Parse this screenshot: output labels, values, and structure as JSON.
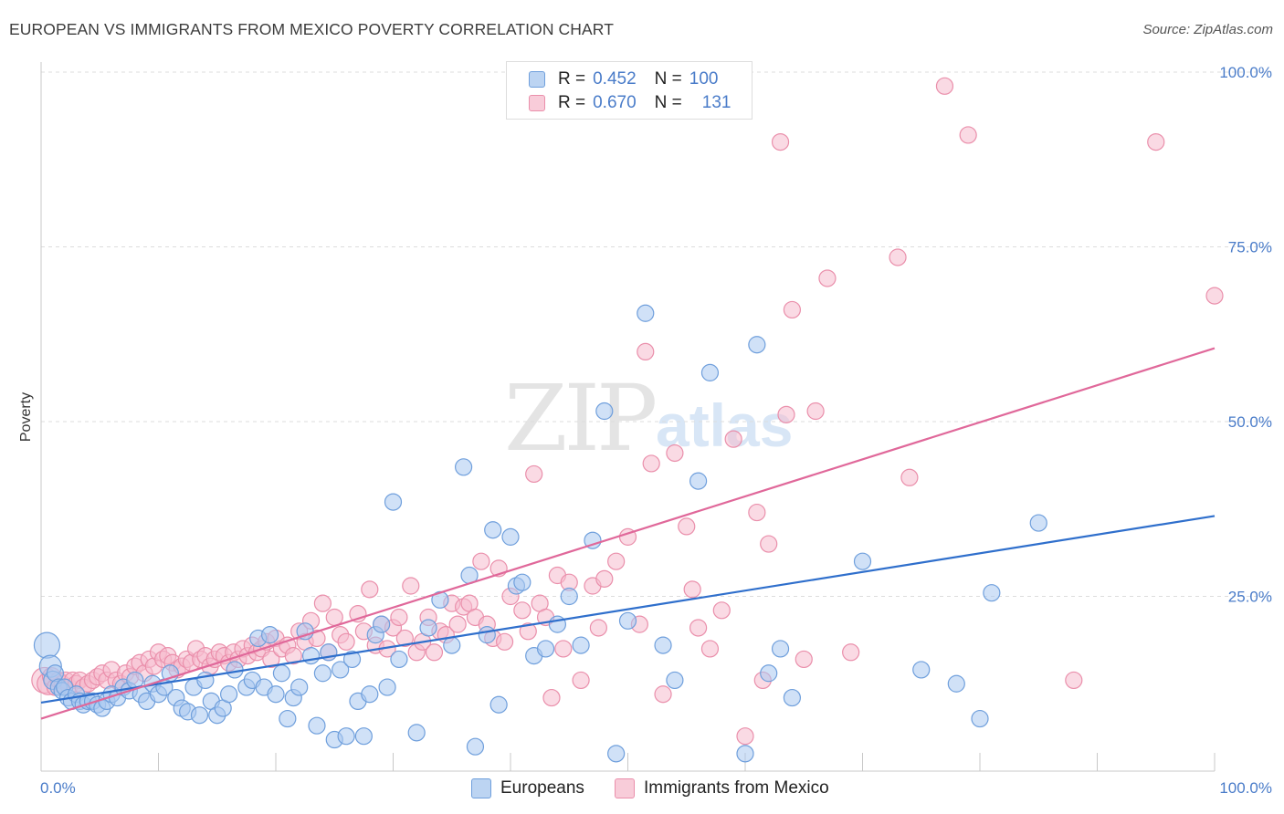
{
  "title": "EUROPEAN VS IMMIGRANTS FROM MEXICO POVERTY CORRELATION CHART",
  "source": "Source: ZipAtlas.com",
  "watermark": {
    "zip": "ZIP",
    "atlas": "atlas"
  },
  "legend": {
    "rows": [
      {
        "r_label": "R =",
        "r_value": "0.452",
        "n_label": "N =",
        "n_value": "100"
      },
      {
        "r_label": "R =",
        "r_value": "0.670",
        "n_label": "N =",
        "n_value": "131"
      }
    ]
  },
  "bottom_legend": [
    "Europeans",
    "Immigrants from Mexico"
  ],
  "colors": {
    "europeans_fill": "#a9c9f0",
    "europeans_stroke": "#6f9fdc",
    "europeans_line": "#2f6fcc",
    "mexico_fill": "#f6bccd",
    "mexico_stroke": "#ea8fab",
    "mexico_line": "#e0689a",
    "grid": "#dddddd",
    "tick_text": "#4a7cc9"
  },
  "chart_data": {
    "type": "scatter",
    "title": "EUROPEAN VS IMMIGRANTS FROM MEXICO POVERTY CORRELATION CHART",
    "xlabel": "",
    "ylabel": "Poverty",
    "xlim": [
      0,
      100
    ],
    "ylim": [
      0,
      100
    ],
    "x_tick_labels": [
      "0.0%",
      "100.0%"
    ],
    "y_ticks": [
      25,
      50,
      75,
      100
    ],
    "y_tick_labels": [
      "25.0%",
      "50.0%",
      "75.0%",
      "100.0%"
    ],
    "grid": true,
    "legend_position": "top-center",
    "series": [
      {
        "name": "Europeans",
        "R": 0.452,
        "N": 100,
        "trend": {
          "x": [
            0,
            100
          ],
          "y": [
            9.8,
            36.5
          ]
        },
        "points": [
          [
            0.5,
            18
          ],
          [
            0.8,
            15
          ],
          [
            1.0,
            13
          ],
          [
            1.2,
            14
          ],
          [
            1.5,
            12
          ],
          [
            1.8,
            11.5
          ],
          [
            2.0,
            12
          ],
          [
            2.3,
            10.5
          ],
          [
            2.6,
            10
          ],
          [
            3.0,
            11
          ],
          [
            3.3,
            10
          ],
          [
            3.6,
            9.5
          ],
          [
            4.0,
            10
          ],
          [
            4.4,
            10
          ],
          [
            4.8,
            9.5
          ],
          [
            5.2,
            9
          ],
          [
            5.6,
            10
          ],
          [
            6.0,
            11
          ],
          [
            6.5,
            10.5
          ],
          [
            7.0,
            12
          ],
          [
            7.5,
            11.5
          ],
          [
            8.0,
            13
          ],
          [
            8.5,
            11
          ],
          [
            9.0,
            10
          ],
          [
            9.5,
            12.5
          ],
          [
            10.0,
            11
          ],
          [
            10.5,
            12
          ],
          [
            11.0,
            14
          ],
          [
            11.5,
            10.5
          ],
          [
            12.0,
            9
          ],
          [
            12.5,
            8.5
          ],
          [
            13.0,
            12
          ],
          [
            13.5,
            8
          ],
          [
            14.0,
            13
          ],
          [
            14.5,
            10
          ],
          [
            15.0,
            8
          ],
          [
            15.5,
            9
          ],
          [
            16.0,
            11
          ],
          [
            16.5,
            14.5
          ],
          [
            17.5,
            12
          ],
          [
            18.0,
            13
          ],
          [
            18.5,
            19
          ],
          [
            19.0,
            12
          ],
          [
            19.5,
            19.5
          ],
          [
            20.0,
            11
          ],
          [
            20.5,
            14
          ],
          [
            21.0,
            7.5
          ],
          [
            21.5,
            10.5
          ],
          [
            22.0,
            12
          ],
          [
            22.5,
            20
          ],
          [
            23.0,
            16.5
          ],
          [
            23.5,
            6.5
          ],
          [
            24.0,
            14
          ],
          [
            24.5,
            17
          ],
          [
            25.0,
            4.5
          ],
          [
            25.5,
            14.5
          ],
          [
            26.0,
            5
          ],
          [
            26.5,
            16
          ],
          [
            27.0,
            10
          ],
          [
            27.5,
            5
          ],
          [
            28.0,
            11
          ],
          [
            28.5,
            19.5
          ],
          [
            29.0,
            21
          ],
          [
            29.5,
            12
          ],
          [
            30.0,
            38.5
          ],
          [
            30.5,
            16
          ],
          [
            32.0,
            5.5
          ],
          [
            33.0,
            20.5
          ],
          [
            34.0,
            24.5
          ],
          [
            35.0,
            18
          ],
          [
            36.0,
            43.5
          ],
          [
            36.5,
            28
          ],
          [
            37.0,
            3.5
          ],
          [
            38.0,
            19.5
          ],
          [
            38.5,
            34.5
          ],
          [
            39.0,
            9.5
          ],
          [
            40.0,
            33.5
          ],
          [
            40.5,
            26.5
          ],
          [
            41.0,
            27
          ],
          [
            42.0,
            16.5
          ],
          [
            43.0,
            17.5
          ],
          [
            44.0,
            21
          ],
          [
            45.0,
            25
          ],
          [
            46.0,
            18
          ],
          [
            47.0,
            33
          ],
          [
            48.0,
            51.5
          ],
          [
            49.0,
            2.5
          ],
          [
            50.0,
            21.5
          ],
          [
            51.5,
            65.5
          ],
          [
            53.0,
            18
          ],
          [
            54.0,
            13
          ],
          [
            56.0,
            41.5
          ],
          [
            57.0,
            57
          ],
          [
            60.0,
            2.5
          ],
          [
            61.0,
            61
          ],
          [
            62.0,
            14
          ],
          [
            63.0,
            17.5
          ],
          [
            64.0,
            10.5
          ],
          [
            70.0,
            30
          ],
          [
            75.0,
            14.5
          ],
          [
            78.0,
            12.5
          ],
          [
            80.0,
            7.5
          ],
          [
            81.0,
            25.5
          ],
          [
            85.0,
            35.5
          ]
        ]
      },
      {
        "name": "Immigrants from Mexico",
        "R": 0.67,
        "N": 131,
        "trend": {
          "x": [
            0,
            100
          ],
          "y": [
            7.5,
            60.5
          ]
        },
        "points": [
          [
            0.3,
            13
          ],
          [
            0.6,
            12.5
          ],
          [
            0.9,
            13.5
          ],
          [
            1.2,
            12
          ],
          [
            1.5,
            13
          ],
          [
            1.8,
            12.5
          ],
          [
            2.1,
            13
          ],
          [
            2.4,
            12
          ],
          [
            2.7,
            13
          ],
          [
            3.0,
            12.5
          ],
          [
            3.3,
            13
          ],
          [
            3.6,
            12
          ],
          [
            4.0,
            12.5
          ],
          [
            4.4,
            13
          ],
          [
            4.8,
            13.5
          ],
          [
            5.2,
            14
          ],
          [
            5.6,
            13
          ],
          [
            6.0,
            14.5
          ],
          [
            6.4,
            13
          ],
          [
            6.8,
            12.5
          ],
          [
            7.2,
            14
          ],
          [
            7.6,
            13.5
          ],
          [
            8.0,
            15
          ],
          [
            8.4,
            15.5
          ],
          [
            8.8,
            14
          ],
          [
            9.2,
            16
          ],
          [
            9.6,
            15
          ],
          [
            10.0,
            17
          ],
          [
            10.4,
            16
          ],
          [
            10.8,
            16.5
          ],
          [
            11.2,
            15.5
          ],
          [
            11.6,
            14.5
          ],
          [
            12.0,
            15
          ],
          [
            12.4,
            16
          ],
          [
            12.8,
            15.5
          ],
          [
            13.2,
            17.5
          ],
          [
            13.6,
            16
          ],
          [
            14.0,
            16.5
          ],
          [
            14.4,
            15
          ],
          [
            14.8,
            16
          ],
          [
            15.2,
            17
          ],
          [
            15.6,
            16.5
          ],
          [
            16.0,
            15.5
          ],
          [
            16.4,
            17
          ],
          [
            16.8,
            16
          ],
          [
            17.2,
            17.5
          ],
          [
            17.6,
            16.5
          ],
          [
            18.0,
            18
          ],
          [
            18.4,
            17
          ],
          [
            18.8,
            17.5
          ],
          [
            19.2,
            18.5
          ],
          [
            19.6,
            16
          ],
          [
            20.0,
            19
          ],
          [
            20.5,
            17.5
          ],
          [
            21.0,
            18
          ],
          [
            21.5,
            16.5
          ],
          [
            22.0,
            20
          ],
          [
            22.5,
            18.5
          ],
          [
            23.0,
            21.5
          ],
          [
            23.5,
            19
          ],
          [
            24.0,
            24
          ],
          [
            24.5,
            17
          ],
          [
            25.0,
            22
          ],
          [
            25.5,
            19.5
          ],
          [
            26.0,
            18.5
          ],
          [
            27.0,
            22.5
          ],
          [
            27.5,
            20
          ],
          [
            28.0,
            26
          ],
          [
            28.5,
            18
          ],
          [
            29.0,
            21
          ],
          [
            29.5,
            17.5
          ],
          [
            30.0,
            20.5
          ],
          [
            30.5,
            22
          ],
          [
            31.0,
            19
          ],
          [
            31.5,
            26.5
          ],
          [
            32.0,
            17
          ],
          [
            32.5,
            18.5
          ],
          [
            33.0,
            22
          ],
          [
            33.5,
            17
          ],
          [
            34.0,
            20
          ],
          [
            34.5,
            19.5
          ],
          [
            35.0,
            24
          ],
          [
            35.5,
            21
          ],
          [
            36.0,
            23.5
          ],
          [
            36.5,
            24
          ],
          [
            37.0,
            22
          ],
          [
            37.5,
            30
          ],
          [
            38.0,
            21
          ],
          [
            38.5,
            19
          ],
          [
            39.0,
            29
          ],
          [
            39.5,
            18.5
          ],
          [
            40.0,
            25
          ],
          [
            41.0,
            23
          ],
          [
            41.5,
            20
          ],
          [
            42.0,
            42.5
          ],
          [
            42.5,
            24
          ],
          [
            43.0,
            22
          ],
          [
            43.5,
            10.5
          ],
          [
            44.0,
            28
          ],
          [
            44.5,
            17.5
          ],
          [
            45.0,
            27
          ],
          [
            46.0,
            13
          ],
          [
            47.0,
            26.5
          ],
          [
            47.5,
            20.5
          ],
          [
            48.0,
            27.5
          ],
          [
            49.0,
            30
          ],
          [
            50.0,
            33.5
          ],
          [
            51.0,
            21
          ],
          [
            51.5,
            60
          ],
          [
            52.0,
            44
          ],
          [
            53.0,
            11
          ],
          [
            54.0,
            45.5
          ],
          [
            55.0,
            35
          ],
          [
            55.5,
            26
          ],
          [
            56.0,
            20.5
          ],
          [
            57.0,
            17.5
          ],
          [
            58.0,
            23
          ],
          [
            59.0,
            47.5
          ],
          [
            60.0,
            5
          ],
          [
            61.0,
            37
          ],
          [
            61.5,
            13
          ],
          [
            62.0,
            32.5
          ],
          [
            63.0,
            90
          ],
          [
            63.5,
            51
          ],
          [
            64.0,
            66
          ],
          [
            65.0,
            16
          ],
          [
            66.0,
            51.5
          ],
          [
            67.0,
            70.5
          ],
          [
            69.0,
            17
          ],
          [
            73.0,
            73.5
          ],
          [
            74.0,
            42
          ],
          [
            77.0,
            98
          ],
          [
            79.0,
            91
          ],
          [
            88.0,
            13
          ],
          [
            95.0,
            90
          ],
          [
            100.0,
            68
          ]
        ]
      }
    ]
  }
}
